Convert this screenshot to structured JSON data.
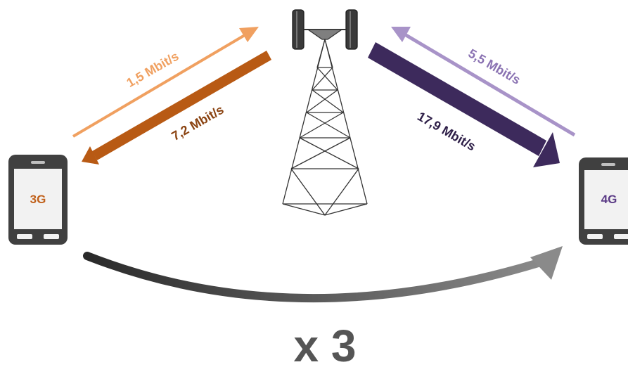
{
  "phones": [
    {
      "label": "3G",
      "color": "#c0601a"
    },
    {
      "label": "4G",
      "color": "#5b3b86"
    }
  ],
  "speeds": {
    "g3_upload": "1,5 Mbit/s",
    "g3_download": "7,2 Mbit/s",
    "g4_upload": "5,5 Mbit/s",
    "g4_download": "17,9 Mbit/s"
  },
  "multiplier": "x 3",
  "colors": {
    "g3_upload": "#f0a060",
    "g3_download": "#b85a14",
    "g4_upload": "#a893c8",
    "g4_download": "#3d2a5c",
    "phone_body": "#404040",
    "phone_screen": "#f2f2f2",
    "tower": "#333333",
    "multiplier": "#555555"
  }
}
